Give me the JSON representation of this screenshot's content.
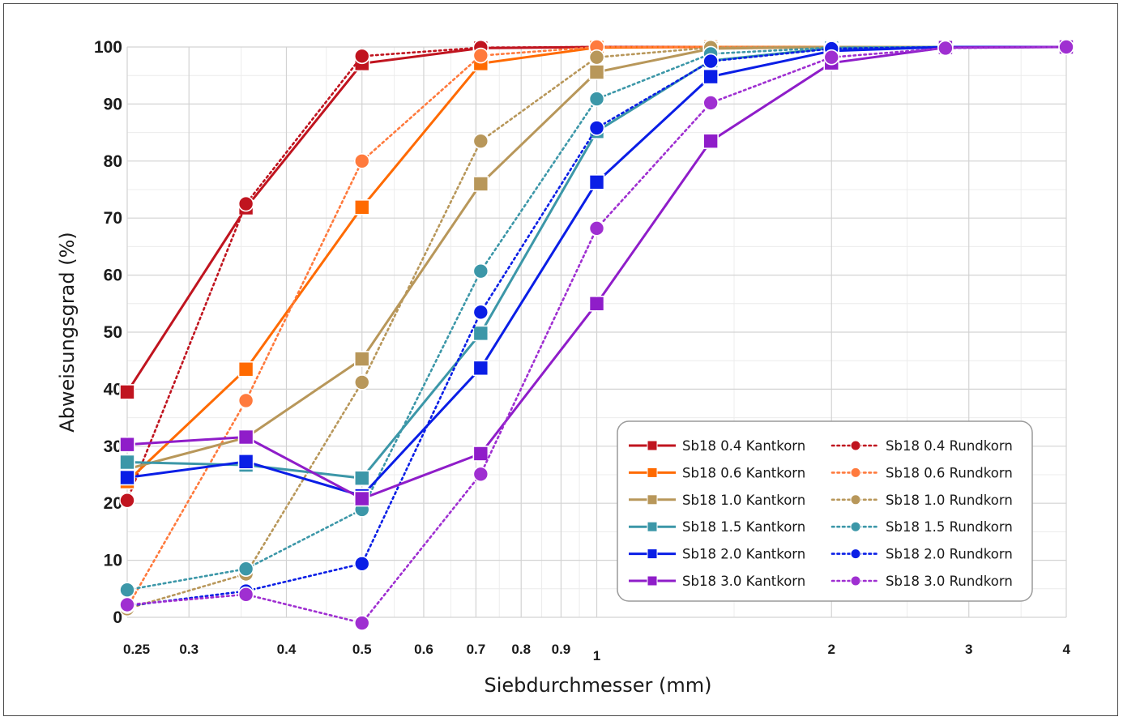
{
  "chart_data": {
    "type": "line",
    "xlabel": "Siebdurchmesser (mm)",
    "ylabel": "Abweisungsgrad (%)",
    "x_scale": "log",
    "xlim": [
      0.25,
      4
    ],
    "ylim": [
      0,
      100
    ],
    "grid": true,
    "legend_position": "bottom-right",
    "y_ticks": [
      "0",
      "10",
      "20",
      "30",
      "40",
      "50",
      "60",
      "70",
      "80",
      "90",
      "100"
    ],
    "x_ticks": [
      {
        "value": 0.25,
        "label": "0.25"
      },
      {
        "value": 0.3,
        "label": "0.3"
      },
      {
        "value": 0.4,
        "label": "0.4"
      },
      {
        "value": 0.5,
        "label": "0.5"
      },
      {
        "value": 0.6,
        "label": "0.6"
      },
      {
        "value": 0.7,
        "label": "0.7"
      },
      {
        "value": 0.8,
        "label": "0.8"
      },
      {
        "value": 0.9,
        "label": "0.9"
      },
      {
        "value": 1,
        "label": "1"
      },
      {
        "value": 2,
        "label": "2"
      },
      {
        "value": 3,
        "label": "3"
      },
      {
        "value": 4,
        "label": "4"
      }
    ],
    "series": [
      {
        "name": "Sb18 0.4 Kantkorn",
        "color": "#c0141f",
        "line": "solid",
        "marker": "square",
        "x": [
          0.25,
          0.355,
          0.5,
          0.71,
          1.0,
          1.4,
          2.0,
          2.8,
          4.0
        ],
        "y": [
          39.5,
          71.8,
          97.1,
          99.8,
          100,
          100,
          100,
          100,
          100
        ]
      },
      {
        "name": "Sb18 0.4 Rundkorn",
        "color": "#c0141f",
        "line": "dotted",
        "marker": "circle",
        "x": [
          0.25,
          0.355,
          0.5,
          0.71,
          1.0,
          1.4,
          2.0,
          2.8,
          4.0
        ],
        "y": [
          20.5,
          72.5,
          98.4,
          99.9,
          100,
          100,
          100,
          100,
          100
        ]
      },
      {
        "name": "Sb18 0.6 Kantkorn",
        "color": "#ff6a00",
        "line": "solid",
        "marker": "square",
        "x": [
          0.25,
          0.355,
          0.5,
          0.71,
          1.0,
          1.4,
          2.0,
          2.8,
          4.0
        ],
        "y": [
          23.8,
          43.5,
          71.9,
          97.1,
          99.9,
          100,
          100,
          100,
          100
        ]
      },
      {
        "name": "Sb18 0.6 Rundkorn",
        "color": "#ff7a3d",
        "line": "dotted",
        "marker": "circle",
        "x": [
          0.25,
          0.355,
          0.5,
          0.71,
          1.0,
          1.4,
          2.0,
          2.8,
          4.0
        ],
        "y": [
          1.7,
          38.0,
          80.0,
          98.5,
          100,
          100,
          100,
          100,
          100
        ]
      },
      {
        "name": "Sb18 1.0 Kantkorn",
        "color": "#b8975a",
        "line": "solid",
        "marker": "square",
        "x": [
          0.25,
          0.355,
          0.5,
          0.71,
          1.0,
          1.4,
          2.0,
          2.8,
          4.0
        ],
        "y": [
          26.0,
          31.5,
          45.3,
          76.0,
          95.6,
          99.7,
          100,
          100,
          100
        ]
      },
      {
        "name": "Sb18 1.0 Rundkorn",
        "color": "#b8975a",
        "line": "dotted",
        "marker": "circle",
        "x": [
          0.25,
          0.355,
          0.5,
          0.71,
          1.0,
          1.4,
          2.0,
          2.8,
          4.0
        ],
        "y": [
          1.5,
          7.6,
          41.2,
          83.5,
          98.2,
          99.9,
          100,
          100,
          100
        ]
      },
      {
        "name": "Sb18 1.5 Kantkorn",
        "color": "#3c97a8",
        "line": "solid",
        "marker": "square",
        "x": [
          0.25,
          0.355,
          0.5,
          0.71,
          1.0,
          1.4,
          2.0,
          2.8,
          4.0
        ],
        "y": [
          27.2,
          26.7,
          24.4,
          49.8,
          85.2,
          97.6,
          99.8,
          100,
          100
        ]
      },
      {
        "name": "Sb18 1.5 Rundkorn",
        "color": "#3c97a8",
        "line": "dotted",
        "marker": "circle",
        "x": [
          0.25,
          0.355,
          0.5,
          0.71,
          1.0,
          1.4,
          2.0,
          2.8,
          4.0
        ],
        "y": [
          4.8,
          8.5,
          18.9,
          60.7,
          90.9,
          98.8,
          99.9,
          100,
          100
        ]
      },
      {
        "name": "Sb18 2.0 Kantkorn",
        "color": "#0a1ee6",
        "line": "solid",
        "marker": "square",
        "x": [
          0.25,
          0.355,
          0.5,
          0.71,
          1.0,
          1.4,
          2.0,
          2.8,
          4.0
        ],
        "y": [
          24.5,
          27.3,
          21.3,
          43.7,
          76.3,
          94.8,
          99.3,
          100,
          100
        ]
      },
      {
        "name": "Sb18 2.0 Rundkorn",
        "color": "#0a1ee6",
        "line": "dotted",
        "marker": "circle",
        "x": [
          0.25,
          0.355,
          0.5,
          0.71,
          1.0,
          1.4,
          2.0,
          2.8,
          4.0
        ],
        "y": [
          2.0,
          4.6,
          9.4,
          53.5,
          85.8,
          97.5,
          99.7,
          100,
          100
        ]
      },
      {
        "name": "Sb18 3.0 Kantkorn",
        "color": "#8f1dc9",
        "line": "solid",
        "marker": "square",
        "x": [
          0.25,
          0.355,
          0.5,
          0.71,
          1.0,
          1.4,
          2.0,
          2.8,
          4.0
        ],
        "y": [
          30.3,
          31.6,
          20.8,
          28.7,
          55.0,
          83.5,
          97.2,
          99.9,
          100
        ]
      },
      {
        "name": "Sb18 3.0 Rundkorn",
        "color": "#9f2fd1",
        "line": "dotted",
        "marker": "circle",
        "x": [
          0.25,
          0.355,
          0.5,
          0.71,
          1.0,
          1.4,
          2.0,
          2.8,
          4.0
        ],
        "y": [
          2.2,
          4.0,
          -1.0,
          25.1,
          68.2,
          90.2,
          98.2,
          99.8,
          100
        ]
      }
    ]
  }
}
